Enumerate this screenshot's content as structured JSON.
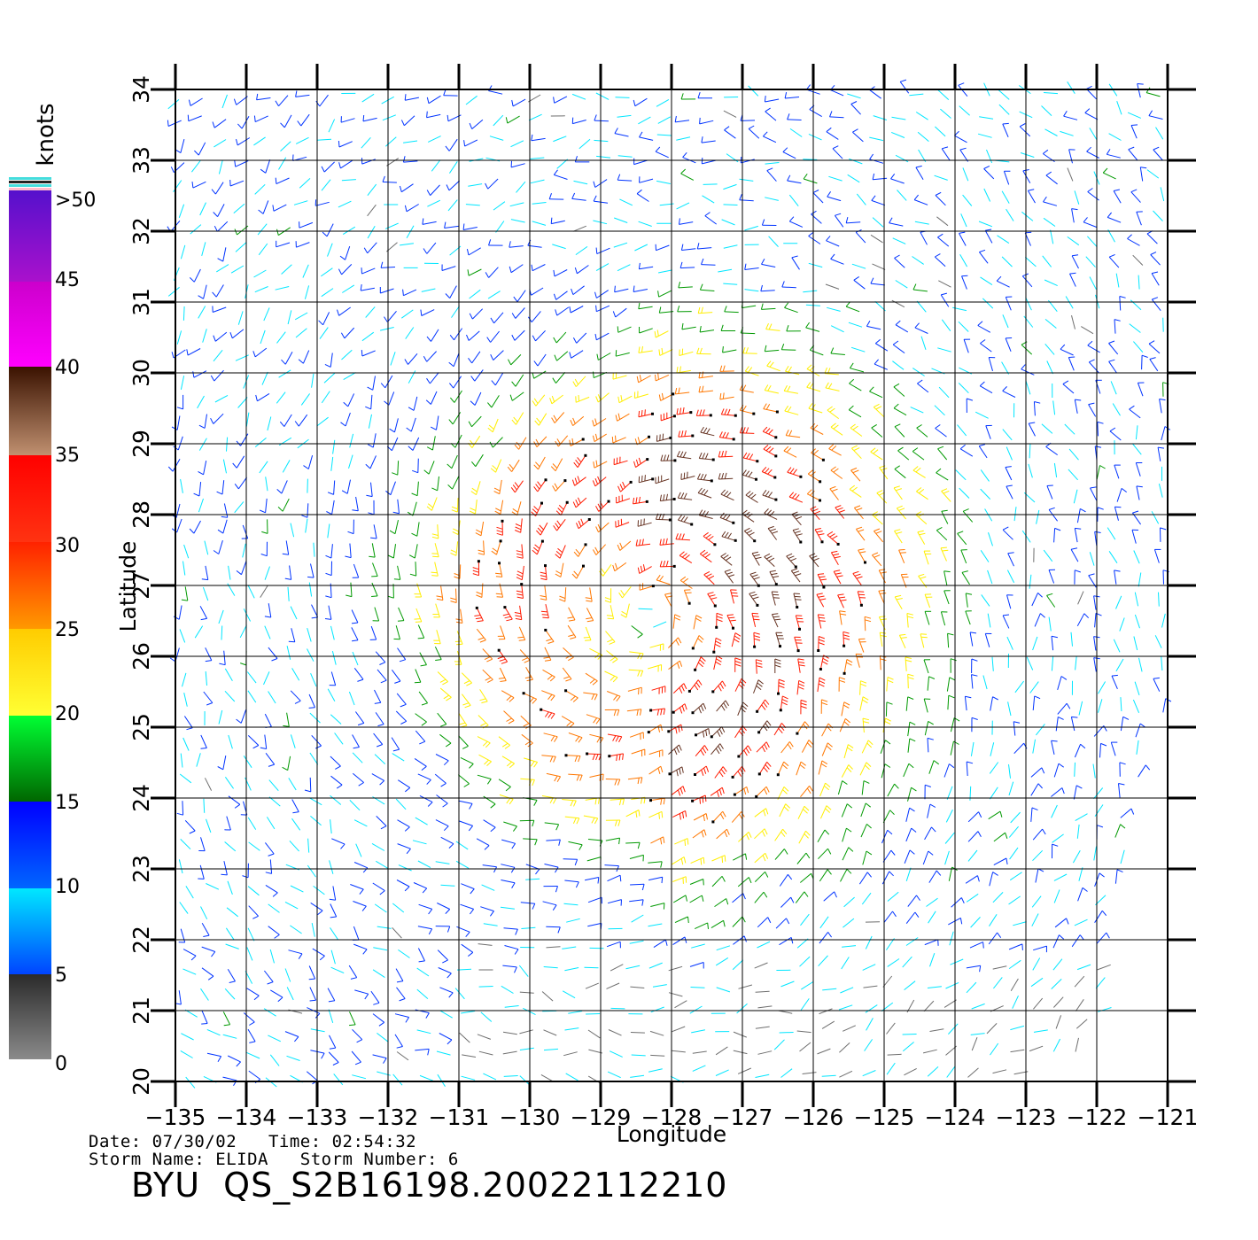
{
  "map": {
    "lon_ticks": [
      "−135",
      "−134",
      "−133",
      "−132",
      "−131",
      "−130",
      "−129",
      "−128",
      "−127",
      "−126",
      "−125",
      "−124",
      "−123",
      "−122",
      "−121"
    ],
    "lat_ticks": [
      "20",
      "21",
      "22",
      "23",
      "24",
      "25",
      "26",
      "27",
      "28",
      "29",
      "30",
      "31",
      "32",
      "33",
      "34"
    ],
    "xlabel": "Longitude",
    "ylabel": "Latitude",
    "lon_range": [
      -135,
      -121
    ],
    "lat_range": [
      20,
      34
    ],
    "storm_center": {
      "lon": -128.3,
      "lat": 26.6
    },
    "grid": true
  },
  "legend": {
    "title": "knots",
    "labels": [
      ">50",
      "45",
      "40",
      "35",
      "30",
      "25",
      "20",
      "15",
      "10",
      "5",
      "0"
    ],
    "colors": {
      "calm": "#6e6e6e",
      "light": "#00e6ff",
      "moderate": "#0033ff",
      "fresh": "#009900",
      "strong": "#ffee00",
      "gale": "#ff7700",
      "storm": "#ff1a00",
      "severe": "#663322",
      "violent": "#ff00ff",
      "extreme": "#6633cc"
    }
  },
  "info": {
    "date_line": "Date: 07/30/02   Time: 02:54:32",
    "storm_line": "Storm Name: ELIDA   Storm Number: 6",
    "product_id": "BYU  QS_S2B16198.20022112210"
  }
}
